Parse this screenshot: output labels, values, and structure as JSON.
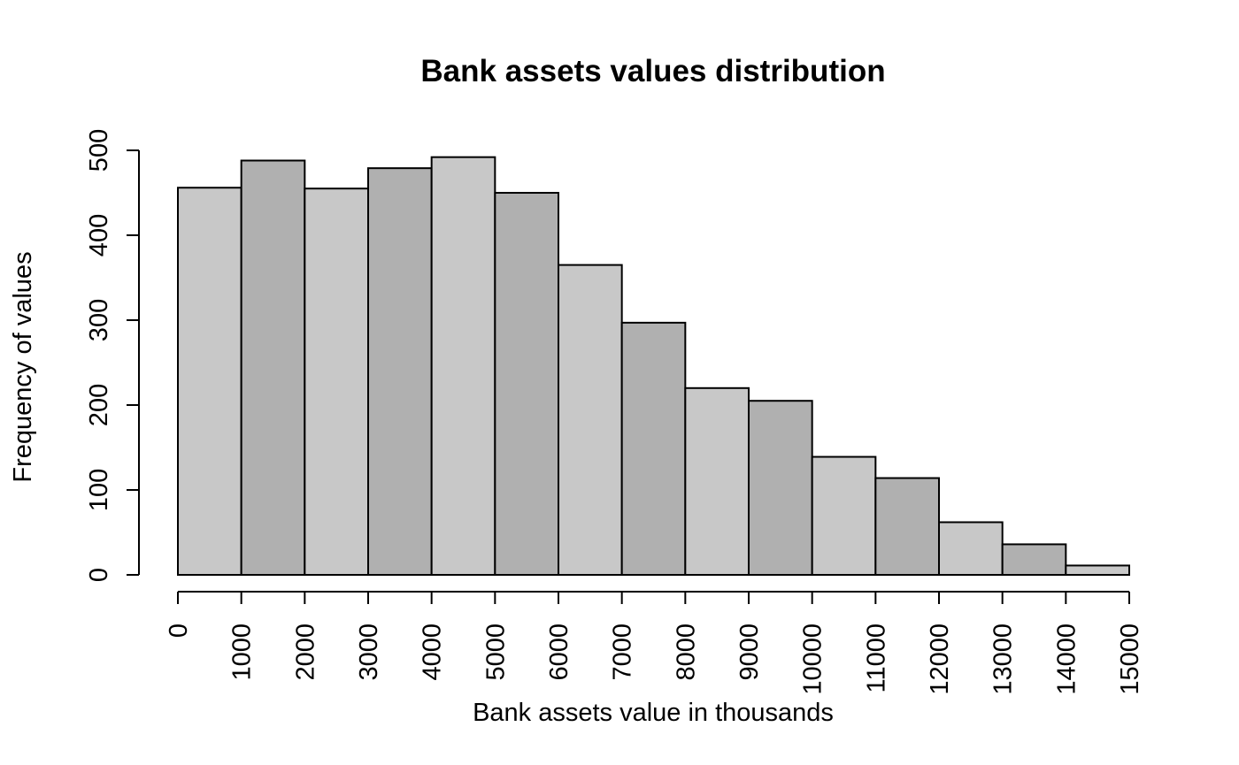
{
  "chart_data": {
    "type": "bar",
    "title": "Bank assets values distribution",
    "xlabel": "Bank assets value in thousands",
    "ylabel": "Frequency of values",
    "bin_edges": [
      0,
      1000,
      2000,
      3000,
      4000,
      5000,
      6000,
      7000,
      8000,
      9000,
      10000,
      11000,
      12000,
      13000,
      14000,
      15000
    ],
    "values": [
      456,
      488,
      455,
      479,
      492,
      450,
      365,
      297,
      220,
      205,
      139,
      114,
      62,
      36,
      11
    ],
    "xlim": [
      0,
      15000
    ],
    "ylim": [
      0,
      500
    ],
    "x_ticks": [
      "0",
      "1000",
      "2000",
      "3000",
      "4000",
      "5000",
      "6000",
      "7000",
      "8000",
      "9000",
      "10000",
      "11000",
      "12000",
      "13000",
      "14000",
      "15000"
    ],
    "y_ticks": [
      "0",
      "100",
      "200",
      "300",
      "400",
      "500"
    ],
    "bar_colors": [
      "#c8c8c8",
      "#b0b0b0"
    ],
    "grid": false,
    "legend": "none"
  }
}
